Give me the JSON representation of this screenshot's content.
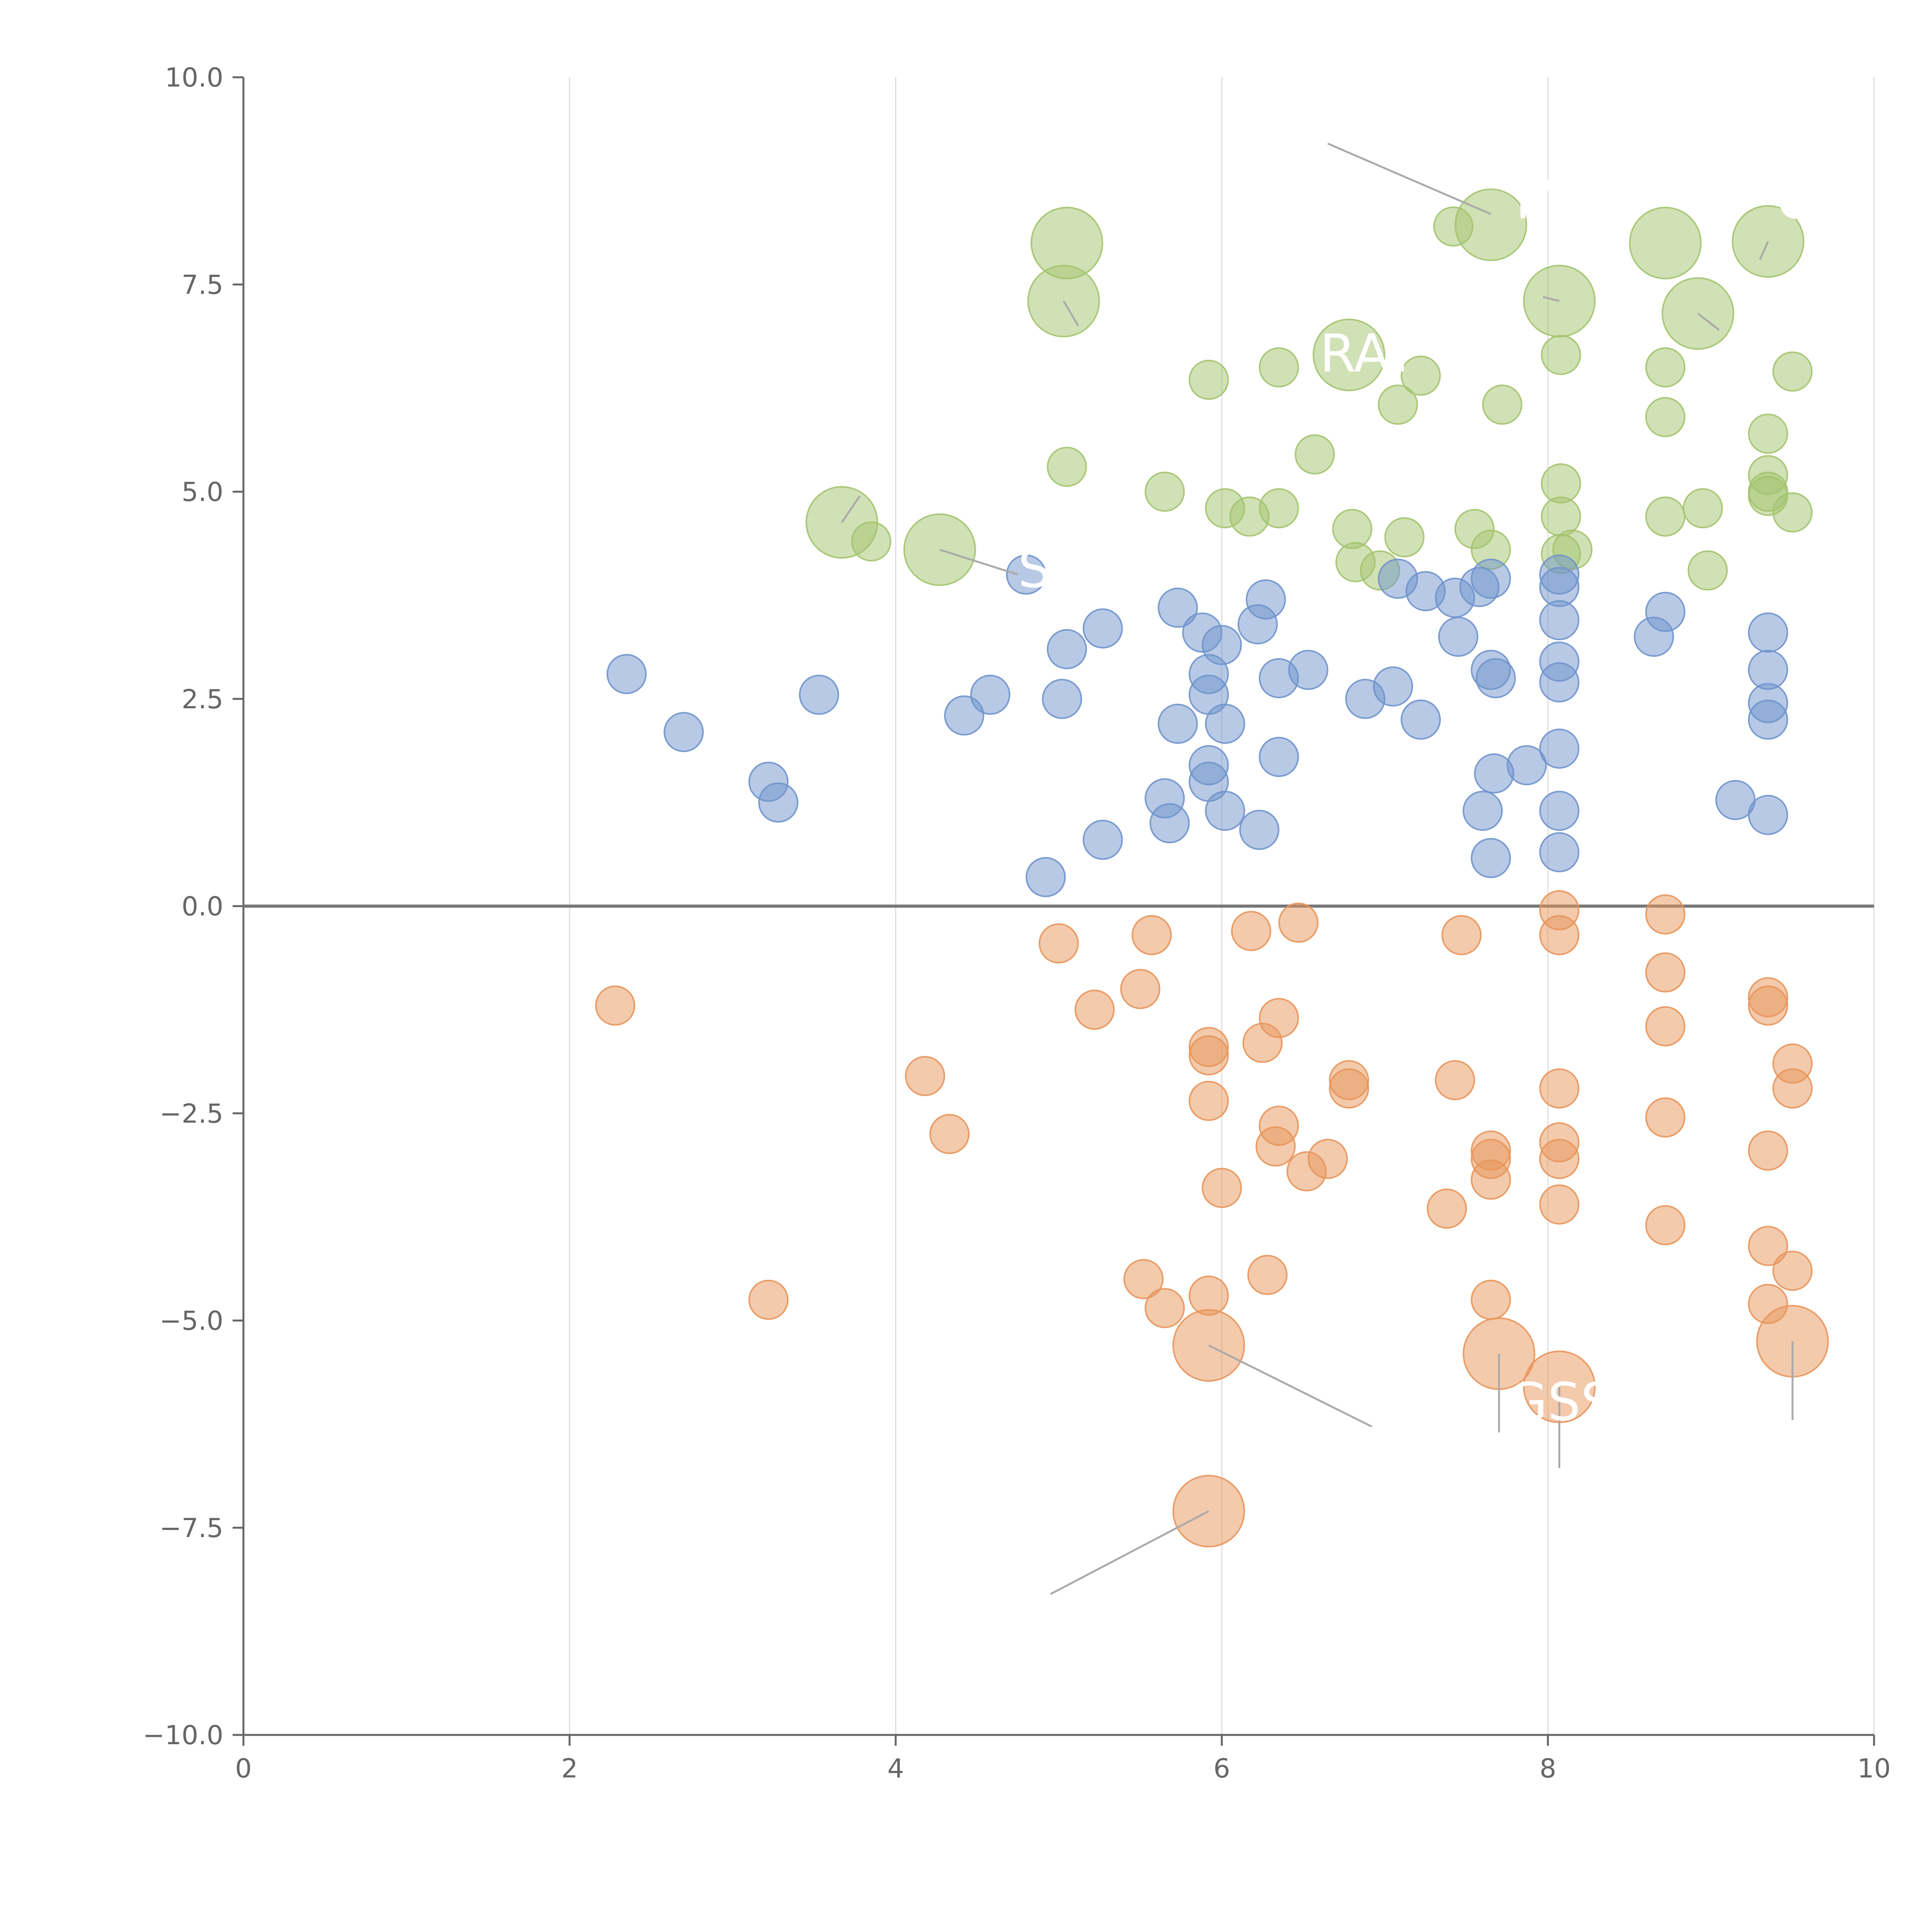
{
  "chart_data": {
    "type": "scatter",
    "title": "",
    "xlabel": "",
    "ylabel": "",
    "xlim": [
      0,
      10
    ],
    "ylim": [
      -10,
      10
    ],
    "x_ticks": [
      0,
      2,
      4,
      6,
      8,
      10
    ],
    "x_tick_labels": [
      "0",
      "2",
      "4",
      "6",
      "8",
      "10"
    ],
    "y_ticks": [
      -10,
      -7.5,
      -5,
      -2.5,
      0,
      2.5,
      5,
      7.5,
      10
    ],
    "y_tick_labels": [
      "−10.0",
      "−7.5",
      "−5.0",
      "−2.5",
      "0.0",
      "2.5",
      "5.0",
      "7.5",
      "10.0"
    ],
    "grid": "vertical",
    "zero_line": true,
    "colors": {
      "green": "#a3c46e",
      "blue": "#6f93cc",
      "orange": "#e8955a",
      "grid": "#dddddd",
      "axis": "#666666"
    },
    "series": [
      {
        "color": "#a3c46e",
        "size": 1,
        "points": [
          [
            3.85,
            4.4
          ],
          [
            5.05,
            5.3
          ],
          [
            5.65,
            5.0
          ],
          [
            5.92,
            6.35
          ],
          [
            6.02,
            4.8
          ],
          [
            6.17,
            4.7
          ],
          [
            6.35,
            4.8
          ],
          [
            6.35,
            6.5
          ],
          [
            6.57,
            5.45
          ],
          [
            6.8,
            4.55
          ],
          [
            6.82,
            4.15
          ],
          [
            6.97,
            4.05
          ],
          [
            7.08,
            6.05
          ],
          [
            7.12,
            4.45
          ],
          [
            7.22,
            6.4
          ],
          [
            7.42,
            8.2
          ],
          [
            7.55,
            4.55
          ],
          [
            7.65,
            4.3
          ],
          [
            7.72,
            6.05
          ],
          [
            8.08,
            4.25
          ],
          [
            8.08,
            4.7
          ],
          [
            8.08,
            5.1
          ],
          [
            8.08,
            6.65
          ],
          [
            8.15,
            4.3
          ],
          [
            8.72,
            4.7
          ],
          [
            8.72,
            5.9
          ],
          [
            8.72,
            6.5
          ],
          [
            8.98,
            4.05
          ],
          [
            8.95,
            4.8
          ],
          [
            9.35,
            5.7
          ],
          [
            9.35,
            5.2
          ],
          [
            9.35,
            5.0
          ],
          [
            9.35,
            4.95
          ],
          [
            9.5,
            4.75
          ],
          [
            9.5,
            6.45
          ]
        ]
      },
      {
        "color": "#a3c46e",
        "size": 2,
        "points": [
          [
            3.67,
            4.63
          ],
          [
            4.27,
            4.3
          ],
          [
            5.03,
            7.3
          ],
          [
            5.05,
            8.0
          ],
          [
            6.78,
            6.65
          ],
          [
            7.65,
            8.22
          ],
          [
            8.07,
            7.3
          ],
          [
            8.72,
            8.0
          ],
          [
            8.92,
            7.15
          ],
          [
            9.35,
            8.02
          ]
        ]
      },
      {
        "color": "#6f93cc",
        "size": 1,
        "points": [
          [
            2.35,
            2.8
          ],
          [
            2.7,
            2.1
          ],
          [
            3.22,
            1.5
          ],
          [
            3.28,
            1.25
          ],
          [
            3.53,
            2.55
          ],
          [
            4.42,
            2.3
          ],
          [
            4.58,
            2.55
          ],
          [
            4.8,
            4.0
          ],
          [
            4.92,
            0.35
          ],
          [
            5.02,
            2.5
          ],
          [
            5.05,
            3.1
          ],
          [
            5.27,
            3.35
          ],
          [
            5.27,
            0.8
          ],
          [
            5.65,
            1.3
          ],
          [
            5.68,
            1.0
          ],
          [
            5.73,
            2.2
          ],
          [
            5.73,
            3.6
          ],
          [
            5.88,
            3.3
          ],
          [
            5.92,
            2.8
          ],
          [
            5.92,
            2.55
          ],
          [
            5.92,
            1.7
          ],
          [
            5.92,
            1.5
          ],
          [
            6.0,
            3.15
          ],
          [
            6.02,
            2.2
          ],
          [
            6.02,
            1.15
          ],
          [
            6.22,
            3.4
          ],
          [
            6.23,
            0.92
          ],
          [
            6.27,
            3.7
          ],
          [
            6.35,
            2.75
          ],
          [
            6.35,
            1.8
          ],
          [
            6.53,
            2.85
          ],
          [
            6.88,
            2.5
          ],
          [
            7.05,
            2.65
          ],
          [
            7.08,
            3.95
          ],
          [
            7.22,
            2.25
          ],
          [
            7.25,
            3.8
          ],
          [
            7.43,
            3.72
          ],
          [
            7.45,
            3.25
          ],
          [
            7.58,
            3.85
          ],
          [
            7.6,
            1.15
          ],
          [
            7.65,
            3.95
          ],
          [
            7.65,
            2.85
          ],
          [
            7.65,
            0.58
          ],
          [
            7.67,
            1.6
          ],
          [
            7.68,
            2.75
          ],
          [
            7.87,
            1.7
          ],
          [
            8.07,
            4.0
          ],
          [
            8.07,
            3.85
          ],
          [
            8.07,
            3.45
          ],
          [
            8.07,
            2.95
          ],
          [
            8.07,
            2.7
          ],
          [
            8.07,
            1.9
          ],
          [
            8.07,
            1.15
          ],
          [
            8.07,
            0.65
          ],
          [
            8.65,
            3.25
          ],
          [
            8.72,
            3.55
          ],
          [
            9.15,
            1.28
          ],
          [
            9.35,
            3.3
          ],
          [
            9.35,
            2.85
          ],
          [
            9.35,
            2.45
          ],
          [
            9.35,
            2.25
          ],
          [
            9.35,
            1.1
          ]
        ]
      },
      {
        "color": "#e8955a",
        "size": 1,
        "points": [
          [
            2.28,
            -1.2
          ],
          [
            3.22,
            -4.75
          ],
          [
            4.18,
            -2.05
          ],
          [
            4.33,
            -2.75
          ],
          [
            5.0,
            -0.45
          ],
          [
            5.22,
            -1.25
          ],
          [
            5.5,
            -1.0
          ],
          [
            5.52,
            -4.5
          ],
          [
            5.57,
            -0.35
          ],
          [
            5.65,
            -4.85
          ],
          [
            5.92,
            -1.7
          ],
          [
            5.92,
            -1.8
          ],
          [
            5.92,
            -2.35
          ],
          [
            5.92,
            -4.7
          ],
          [
            6.0,
            -3.4
          ],
          [
            6.18,
            -0.3
          ],
          [
            6.25,
            -1.65
          ],
          [
            6.28,
            -4.45
          ],
          [
            6.33,
            -2.9
          ],
          [
            6.35,
            -1.35
          ],
          [
            6.35,
            -2.65
          ],
          [
            6.47,
            -0.2
          ],
          [
            6.52,
            -3.2
          ],
          [
            6.65,
            -3.05
          ],
          [
            6.78,
            -2.1
          ],
          [
            6.78,
            -2.2
          ],
          [
            7.38,
            -3.65
          ],
          [
            7.43,
            -2.1
          ],
          [
            7.47,
            -0.35
          ],
          [
            7.65,
            -2.95
          ],
          [
            7.65,
            -3.05
          ],
          [
            7.65,
            -3.3
          ],
          [
            7.65,
            -4.75
          ],
          [
            8.07,
            -0.05
          ],
          [
            8.07,
            -0.35
          ],
          [
            8.07,
            -2.2
          ],
          [
            8.07,
            -2.85
          ],
          [
            8.07,
            -3.05
          ],
          [
            8.07,
            -3.6
          ],
          [
            8.72,
            -0.1
          ],
          [
            8.72,
            -0.8
          ],
          [
            8.72,
            -1.45
          ],
          [
            8.72,
            -2.55
          ],
          [
            8.72,
            -3.85
          ],
          [
            9.35,
            -1.1
          ],
          [
            9.35,
            -1.2
          ],
          [
            9.35,
            -2.95
          ],
          [
            9.35,
            -4.1
          ],
          [
            9.35,
            -4.8
          ],
          [
            9.5,
            -1.9
          ],
          [
            9.5,
            -2.2
          ],
          [
            9.5,
            -4.4
          ]
        ]
      },
      {
        "color": "#e8955a",
        "size": 2,
        "points": [
          [
            5.92,
            -5.3
          ],
          [
            5.92,
            -7.3
          ],
          [
            7.7,
            -5.4
          ],
          [
            8.07,
            -5.8
          ],
          [
            9.5,
            -5.25
          ]
        ]
      }
    ],
    "annotations": [
      {
        "text": "M",
        "x": 7.8,
        "y": 8.3,
        "line": [
          6.65,
          9.2,
          7.65,
          8.35
        ]
      },
      {
        "text": "RAY",
        "x": 6.6,
        "y": 6.45,
        "line": null
      },
      {
        "text": "OV",
        "x": 9.4,
        "y": 8.3,
        "line": null
      },
      {
        "text": "SP",
        "x": 4.75,
        "y": 3.85,
        "line": [
          4.27,
          4.3,
          4.75,
          4.0
        ]
      },
      {
        "text": "GSS",
        "x": 7.75,
        "y": -6.2,
        "line": null
      }
    ],
    "leader_lines": [
      [
        3.67,
        4.63,
        3.78,
        4.95
      ],
      [
        5.03,
        7.3,
        5.12,
        7.0
      ],
      [
        8.07,
        7.3,
        7.97,
        7.35
      ],
      [
        8.92,
        7.15,
        9.05,
        6.95
      ],
      [
        9.35,
        8.02,
        9.3,
        7.8
      ],
      [
        5.92,
        -5.3,
        6.92,
        -6.28
      ],
      [
        5.92,
        -7.3,
        4.95,
        -8.3
      ],
      [
        7.7,
        -5.4,
        7.7,
        -6.35
      ],
      [
        8.07,
        -5.8,
        8.07,
        -6.78
      ],
      [
        9.5,
        -5.25,
        9.5,
        -6.2
      ]
    ]
  }
}
